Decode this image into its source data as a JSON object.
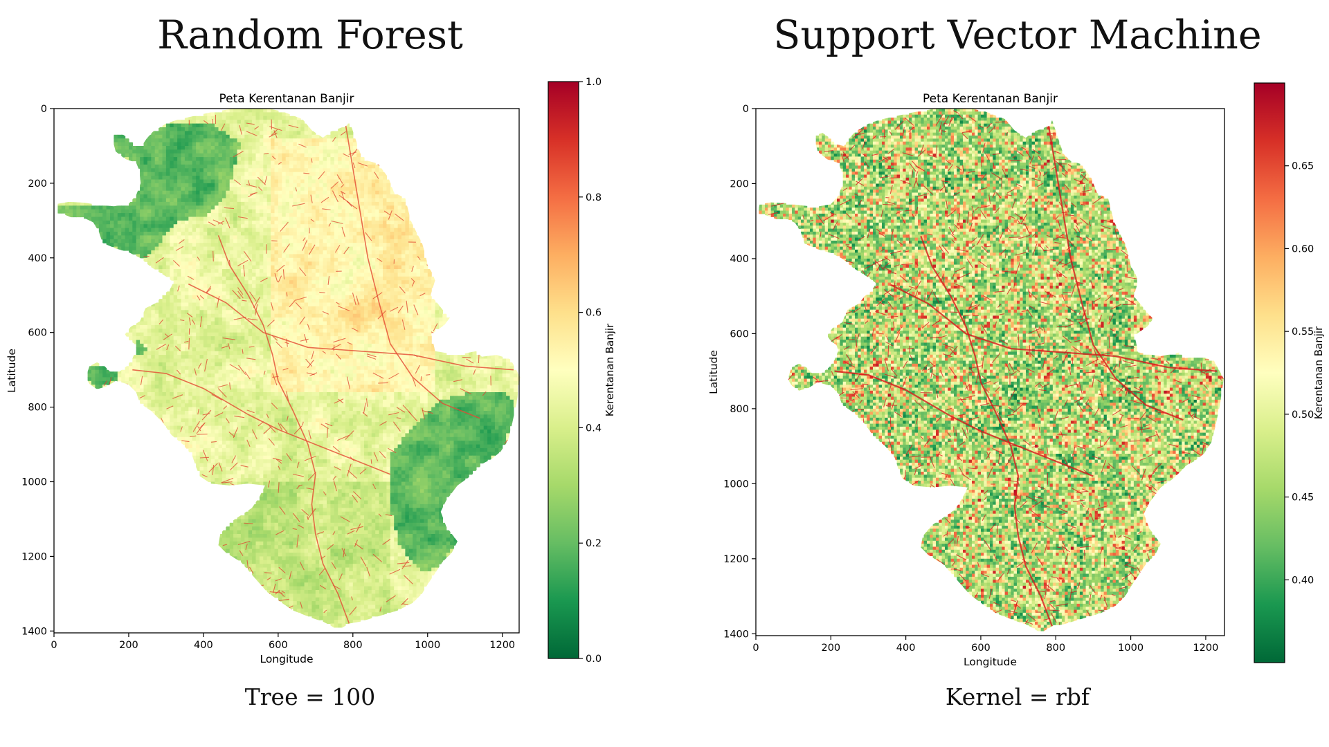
{
  "panels": {
    "left": {
      "heading": "Random Forest",
      "caption": "Tree = 100"
    },
    "right": {
      "heading": "Support Vector Machine",
      "caption": "Kernel = rbf"
    }
  },
  "chart_data": [
    {
      "type": "heatmap",
      "title": "Peta Kerentanan Banjir",
      "xlabel": "Longitude",
      "ylabel": "Latitude",
      "xlim": [
        0,
        1245
      ],
      "ylim": [
        1405,
        0
      ],
      "xticks": [
        0,
        200,
        400,
        600,
        800,
        1000,
        1200
      ],
      "yticks": [
        0,
        200,
        400,
        600,
        800,
        1000,
        1200,
        1400
      ],
      "colormap": "RdYlGn_r",
      "colorbar": {
        "label": "Kerentanan Banjir",
        "range": [
          0.0,
          1.0
        ],
        "ticks": [
          "0.0",
          "0.2",
          "0.4",
          "0.6",
          "0.8",
          "1.0"
        ]
      },
      "pattern": "low susceptibility (green) in north-west and east forest zones; moderate-high (yellow-orange) over central and northern plains with red drainage lines"
    },
    {
      "type": "heatmap",
      "title": "Peta Kerentanan Banjir",
      "xlabel": "Longitude",
      "ylabel": "Latitude",
      "xlim": [
        0,
        1250
      ],
      "ylim": [
        1405,
        0
      ],
      "xticks": [
        0,
        200,
        400,
        600,
        800,
        1000,
        1200
      ],
      "yticks": [
        0,
        200,
        400,
        600,
        800,
        1000,
        1200,
        1400
      ],
      "colormap": "RdYlGn_r",
      "colorbar": {
        "label": "Kerentanan Banjir",
        "range": [
          0.35,
          0.7
        ],
        "ticks": [
          "0.40",
          "0.45",
          "0.50",
          "0.55",
          "0.60",
          "0.65"
        ]
      },
      "pattern": "fine-grained mix of green and red over the whole region with red river lines"
    }
  ],
  "colors": {
    "RdYlGn_r": [
      "#006837",
      "#1a9850",
      "#66bd63",
      "#a6d96a",
      "#d9ef8b",
      "#ffffbf",
      "#fee08b",
      "#fdae61",
      "#f46d43",
      "#d73027",
      "#a50026"
    ]
  }
}
